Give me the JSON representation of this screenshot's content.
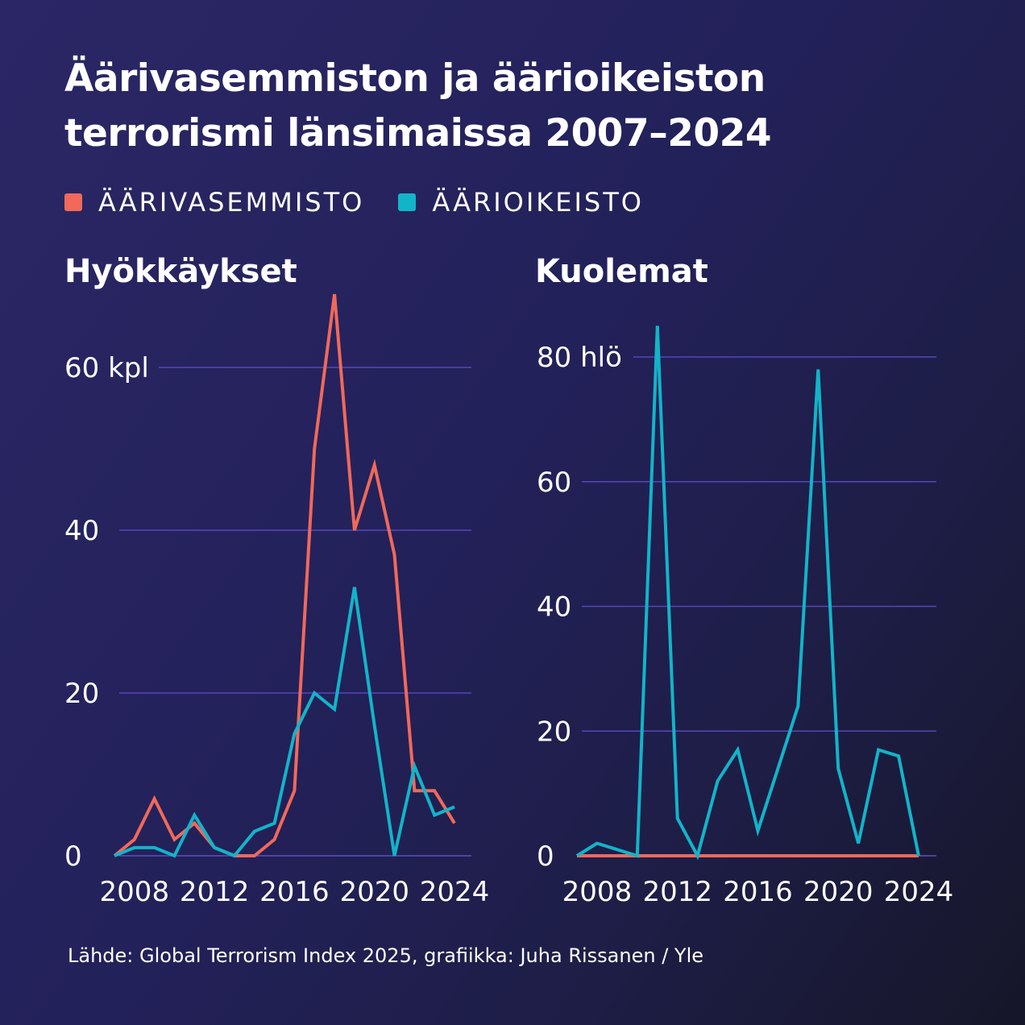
{
  "title": "Äärivasemmiston ja äärioikeiston terrorismi länsimaissa 2007–2024",
  "legend": [
    {
      "label": "ÄÄRIVASEMMISTO",
      "color": "#f0695a"
    },
    {
      "label": "ÄÄRIOIKEISTO",
      "color": "#12b4c8"
    }
  ],
  "source": "Lähde: Global Terrorism Index 2025, grafiikka: Juha Rissanen / Yle",
  "chart_data": [
    {
      "type": "line",
      "title": "Hyökkäykset",
      "x": [
        2007,
        2008,
        2009,
        2010,
        2011,
        2012,
        2013,
        2014,
        2015,
        2016,
        2017,
        2018,
        2019,
        2020,
        2021,
        2022,
        2023,
        2024
      ],
      "xticks": [
        "2008",
        "2012",
        "2016",
        "2020",
        "2024"
      ],
      "yticks": [
        "0",
        "20",
        "40",
        "60 kpl"
      ],
      "ylim": [
        0,
        60
      ],
      "xlim": [
        2007,
        2024
      ],
      "grid": true,
      "series": [
        {
          "name": "ÄÄRIVASEMMISTO",
          "color": "#f0695a",
          "values": [
            0,
            2,
            7,
            2,
            4,
            1,
            0,
            0,
            2,
            8,
            50,
            69,
            40,
            48,
            37,
            8,
            8,
            4
          ]
        },
        {
          "name": "ÄÄRIOIKEISTO",
          "color": "#12b4c8",
          "values": [
            0,
            1,
            1,
            0,
            5,
            1,
            0,
            3,
            4,
            15,
            20,
            18,
            33,
            16,
            0,
            11,
            5,
            6
          ]
        }
      ]
    },
    {
      "type": "line",
      "title": "Kuolemat",
      "x": [
        2007,
        2008,
        2009,
        2010,
        2011,
        2012,
        2013,
        2014,
        2015,
        2016,
        2017,
        2018,
        2019,
        2020,
        2021,
        2022,
        2023,
        2024
      ],
      "xticks": [
        "2008",
        "2012",
        "2016",
        "2020",
        "2024"
      ],
      "yticks": [
        "0",
        "20",
        "40",
        "60",
        "80 hlö"
      ],
      "ylim": [
        0,
        80
      ],
      "xlim": [
        2007,
        2024
      ],
      "grid": true,
      "series": [
        {
          "name": "ÄÄRIVASEMMISTO",
          "color": "#f0695a",
          "values": [
            0,
            0,
            0,
            0,
            0,
            0,
            0,
            0,
            0,
            0,
            0,
            0,
            0,
            0,
            0,
            0,
            0,
            0
          ]
        },
        {
          "name": "ÄÄRIOIKEISTO",
          "color": "#12b4c8",
          "values": [
            0,
            2,
            1,
            0,
            85,
            6,
            0,
            12,
            17,
            4,
            14,
            24,
            78,
            14,
            2,
            17,
            16,
            0
          ]
        }
      ]
    }
  ]
}
